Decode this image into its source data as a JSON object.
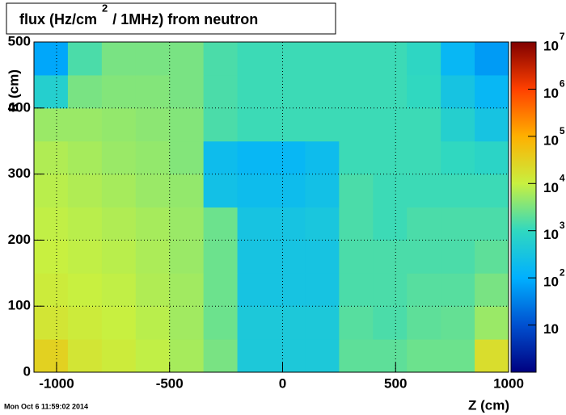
{
  "chart_data": {
    "type": "heatmap",
    "title": "flux (Hz/cm",
    "title_superscript": "2",
    "title_rest": "/ 1MHz) from   neutron",
    "x_label": "Z (cm)",
    "y_label": "R (cm)",
    "timestamp": "Mon Oct  6 11:59:02 2014",
    "xlim": [
      -1100,
      1000
    ],
    "ylim": [
      0,
      500
    ],
    "xticks": [
      -1000,
      -500,
      0,
      500,
      1000
    ],
    "yticks": [
      0,
      100,
      200,
      300,
      400,
      500
    ],
    "grid": true,
    "zlim": [
      1,
      10000000
    ],
    "zlog": true,
    "zticks": [
      {
        "value": 10,
        "label": "10"
      },
      {
        "value": 100,
        "label": "10",
        "exponent": "2"
      },
      {
        "value": 1000,
        "label": "10",
        "exponent": "3"
      },
      {
        "value": 10000,
        "label": "10",
        "exponent": "4"
      },
      {
        "value": 100000,
        "label": "10",
        "exponent": "5"
      },
      {
        "value": 1000000,
        "label": "10",
        "exponent": "6"
      },
      {
        "value": 10000000,
        "label": "10",
        "exponent": "7"
      }
    ],
    "palette": [
      "#000080",
      "#0050d0",
      "#00b0ff",
      "#30d8c0",
      "#c8f040",
      "#ffb000",
      "#ff4000",
      "#800000"
    ],
    "xbins": [
      -1100,
      -950,
      -800,
      -650,
      -500,
      -350,
      -200,
      -50,
      100,
      250,
      400,
      550,
      700,
      850,
      1000
    ],
    "ybins": [
      0,
      50,
      100,
      150,
      200,
      250,
      300,
      350,
      400,
      450,
      500
    ],
    "z": [
      [
        30000,
        15000,
        12000,
        9000,
        6000,
        3000,
        400,
        400,
        400,
        2000,
        2000,
        2500,
        2500,
        20000
      ],
      [
        15000,
        12000,
        10000,
        8000,
        5500,
        2500,
        400,
        400,
        400,
        1800,
        1500,
        2000,
        2200,
        5000
      ],
      [
        12000,
        10000,
        9000,
        7000,
        5500,
        2500,
        300,
        300,
        300,
        1500,
        1500,
        1800,
        1800,
        3000
      ],
      [
        10000,
        9000,
        8000,
        6500,
        5000,
        2500,
        300,
        300,
        300,
        1500,
        1500,
        1500,
        1500,
        2000
      ],
      [
        9000,
        8000,
        7000,
        6000,
        5000,
        2500,
        300,
        300,
        350,
        1500,
        1200,
        1500,
        1500,
        1500
      ],
      [
        8000,
        7000,
        6000,
        5000,
        4500,
        250,
        200,
        200,
        250,
        1500,
        1200,
        1200,
        1200,
        1200
      ],
      [
        7000,
        6000,
        5000,
        4500,
        3500,
        200,
        150,
        150,
        200,
        1200,
        1200,
        1200,
        1000,
        800
      ],
      [
        5000,
        5000,
        4500,
        4000,
        3500,
        1500,
        1200,
        1200,
        1200,
        1200,
        1200,
        1200,
        600,
        300
      ],
      [
        600,
        3000,
        3500,
        3500,
        3000,
        1500,
        1200,
        1200,
        1200,
        1200,
        1200,
        1000,
        300,
        150
      ],
      [
        80,
        1500,
        3000,
        3000,
        3000,
        1500,
        1200,
        1200,
        1200,
        1200,
        1200,
        900,
        150,
        60
      ]
    ]
  }
}
